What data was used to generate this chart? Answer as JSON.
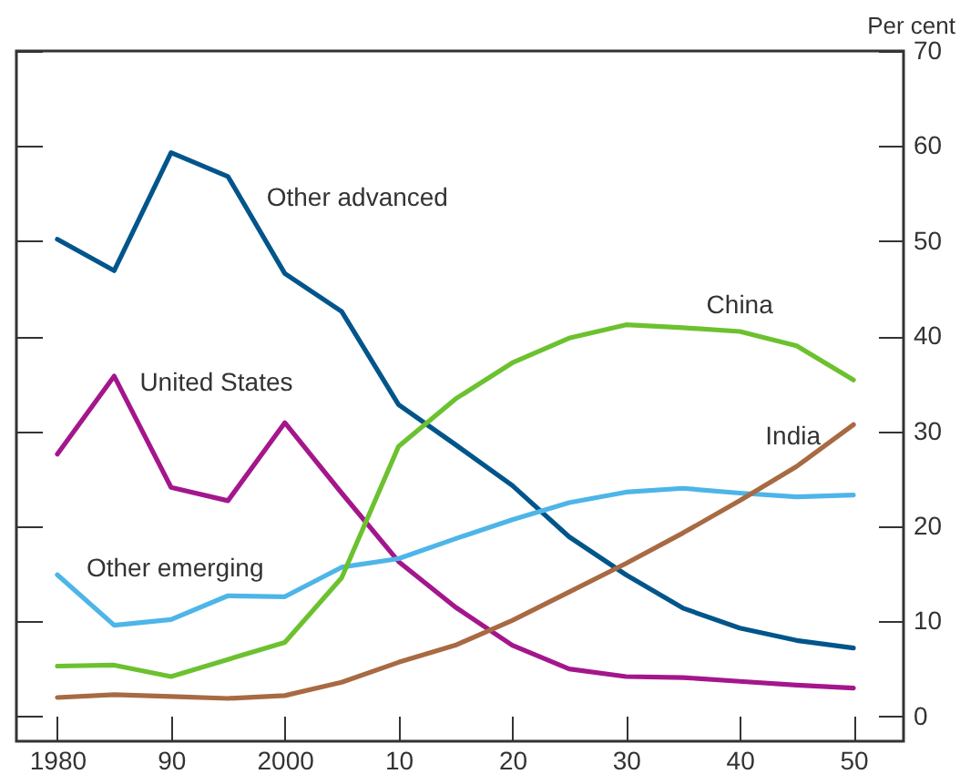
{
  "chart_data": {
    "type": "line",
    "ylabel": "Per cent",
    "x": [
      1980,
      1985,
      1990,
      1995,
      2000,
      2005,
      2010,
      2015,
      2020,
      2025,
      2030,
      2035,
      2040,
      2045,
      2050
    ],
    "series": [
      {
        "name": "Other advanced",
        "color": "#00558b",
        "values": [
          50.2,
          46.9,
          59.3,
          56.8,
          46.6,
          42.6,
          32.8,
          28.6,
          24.3,
          18.9,
          14.9,
          11.4,
          9.3,
          8.0,
          7.2
        ]
      },
      {
        "name": "United States",
        "color": "#a4168c",
        "values": [
          27.6,
          35.8,
          24.1,
          22.7,
          30.9,
          23.5,
          16.3,
          11.5,
          7.5,
          5.0,
          4.2,
          4.1,
          3.7,
          3.3,
          3.0
        ]
      },
      {
        "name": "Other emerging",
        "color": "#4db5e8",
        "values": [
          14.9,
          9.6,
          10.2,
          12.7,
          12.6,
          15.7,
          16.6,
          18.7,
          20.7,
          22.5,
          23.6,
          24.0,
          23.5,
          23.1,
          23.3
        ]
      },
      {
        "name": "China",
        "color": "#6cc12f",
        "values": [
          5.3,
          5.4,
          4.2,
          6.0,
          7.8,
          14.6,
          28.4,
          33.4,
          37.2,
          39.8,
          41.2,
          40.9,
          40.5,
          39.0,
          35.4
        ]
      },
      {
        "name": "India",
        "color": "#a86a42",
        "values": [
          2.0,
          2.3,
          2.1,
          1.9,
          2.2,
          3.6,
          5.7,
          7.5,
          10.1,
          13.1,
          16.1,
          19.3,
          22.7,
          26.3,
          30.7
        ]
      }
    ],
    "xlim": [
      1976.4,
      2054.4
    ],
    "xticks": [
      {
        "value": 1980,
        "label": "1980"
      },
      {
        "value": 1990,
        "label": "90"
      },
      {
        "value": 2000,
        "label": "2000"
      },
      {
        "value": 2010,
        "label": "10"
      },
      {
        "value": 2020,
        "label": "20"
      },
      {
        "value": 2030,
        "label": "30"
      },
      {
        "value": 2040,
        "label": "40"
      },
      {
        "value": 2050,
        "label": "50"
      }
    ],
    "ylim": [
      -2.6,
      70
    ],
    "yticks": [
      0,
      10,
      20,
      30,
      40,
      50,
      60,
      70
    ],
    "legend": false,
    "grid": false
  }
}
